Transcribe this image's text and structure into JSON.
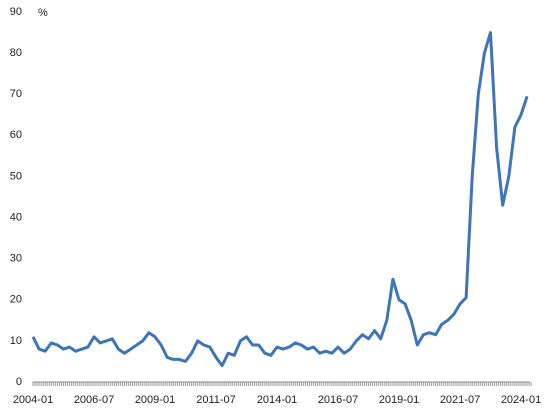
{
  "chart_data": {
    "type": "line",
    "y_label": "%",
    "categories": [
      "2004-01",
      null,
      null,
      null,
      null,
      null,
      null,
      null,
      null,
      null,
      "2006-07",
      null,
      null,
      null,
      null,
      null,
      null,
      null,
      null,
      null,
      "2009-01",
      null,
      null,
      null,
      null,
      null,
      null,
      null,
      null,
      null,
      "2011-07",
      null,
      null,
      null,
      null,
      null,
      null,
      null,
      null,
      null,
      "2014-01",
      null,
      null,
      null,
      null,
      null,
      null,
      null,
      null,
      null,
      "2016-07",
      null,
      null,
      null,
      null,
      null,
      null,
      null,
      null,
      null,
      "2019-01",
      null,
      null,
      null,
      null,
      null,
      null,
      null,
      null,
      null,
      "2021-07",
      null,
      null,
      null,
      null,
      null,
      null,
      null,
      null,
      null,
      "2024-01",
      null
    ],
    "series": [
      {
        "color": "#3f74b6",
        "values": [
          11,
          8,
          7.5,
          9.5,
          9,
          8,
          8.5,
          7.5,
          8,
          8.5,
          11,
          9.5,
          10,
          10.5,
          8,
          7,
          8,
          9,
          10,
          12,
          11,
          9,
          6,
          5.5,
          5.5,
          5,
          7,
          10,
          9,
          8.5,
          6,
          4,
          7,
          6.5,
          10,
          11,
          9,
          9,
          7,
          6.5,
          8.5,
          8,
          8.5,
          9.5,
          9,
          8,
          8.5,
          7,
          7.5,
          7,
          8.5,
          7,
          8,
          10,
          11.5,
          10.5,
          12.5,
          10.5,
          15,
          25,
          20,
          19,
          15,
          9,
          11.5,
          12,
          11.5,
          14,
          15,
          16.5,
          19,
          20.5,
          50,
          70,
          80,
          85,
          57,
          43,
          50,
          62,
          65,
          69.5
        ]
      }
    ],
    "ylim": [
      0,
      90
    ],
    "yticks": [
      0,
      10,
      20,
      30,
      40,
      50,
      60,
      70,
      80,
      90
    ],
    "grid": false
  }
}
